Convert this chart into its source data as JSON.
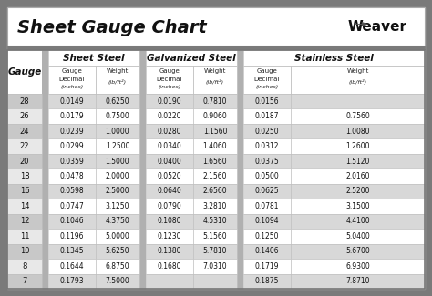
{
  "title": "Sheet Gauge Chart",
  "bg_outer": "#7a7a7a",
  "bg_white": "#ffffff",
  "bg_light_gray": "#d8d8d8",
  "bg_mid_gray": "#b0b0b0",
  "gauges": [
    28,
    26,
    24,
    22,
    20,
    18,
    16,
    14,
    12,
    11,
    10,
    8,
    7
  ],
  "sheet_steel_decimal": [
    "0.0149",
    "0.0179",
    "0.0239",
    "0.0299",
    "0.0359",
    "0.0478",
    "0.0598",
    "0.0747",
    "0.1046",
    "0.1196",
    "0.1345",
    "0.1644",
    "0.1793"
  ],
  "sheet_steel_weight": [
    "0.6250",
    "0.7500",
    "1.0000",
    "1.2500",
    "1.5000",
    "2.0000",
    "2.5000",
    "3.1250",
    "4.3750",
    "5.0000",
    "5.6250",
    "6.8750",
    "7.5000"
  ],
  "galv_steel_decimal": [
    "0.0190",
    "0.0220",
    "0.0280",
    "0.0340",
    "0.0400",
    "0.0520",
    "0.0640",
    "0.0790",
    "0.1080",
    "0.1230",
    "0.1380",
    "0.1680",
    ""
  ],
  "galv_steel_weight": [
    "0.7810",
    "0.9060",
    "1.1560",
    "1.4060",
    "1.6560",
    "2.1560",
    "2.6560",
    "3.2810",
    "4.5310",
    "5.1560",
    "5.7810",
    "7.0310",
    ""
  ],
  "stainless_decimal": [
    "0.0156",
    "0.0187",
    "0.0250",
    "0.0312",
    "0.0375",
    "0.0500",
    "0.0625",
    "0.0781",
    "0.1094",
    "0.1250",
    "0.1406",
    "0.1719",
    "0.1875"
  ],
  "stainless_weight": [
    "",
    "0.7560",
    "1.0080",
    "1.2600",
    "1.5120",
    "2.0160",
    "2.5200",
    "3.1500",
    "4.4100",
    "5.0400",
    "5.6700",
    "6.9300",
    "7.8710"
  ]
}
